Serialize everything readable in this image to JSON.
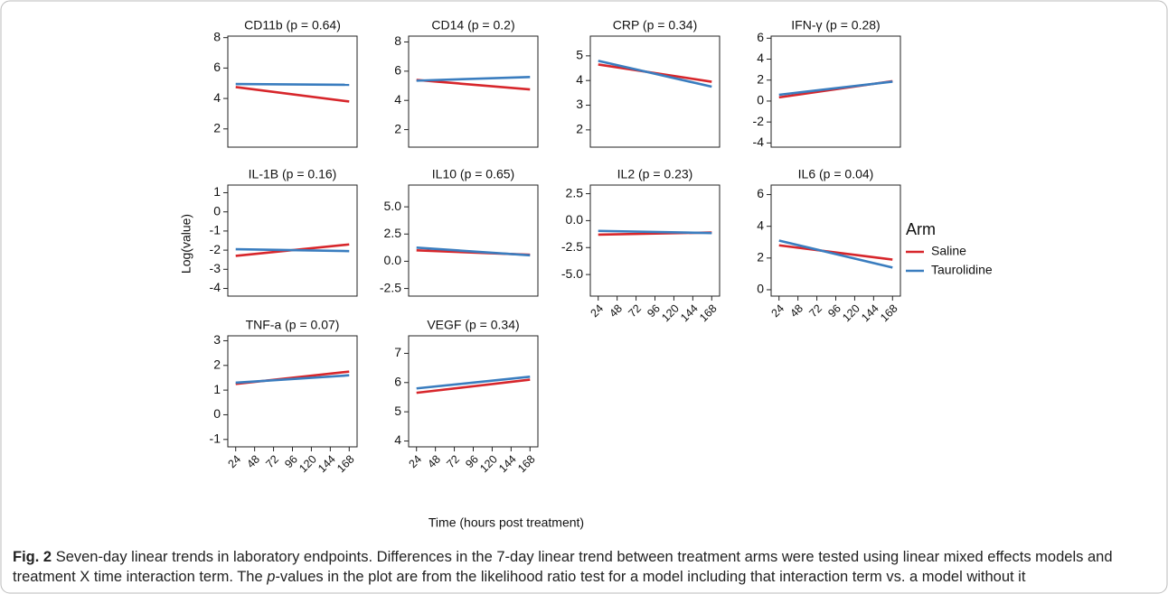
{
  "chart_data": [
    {
      "type": "line",
      "title": "CD11b (p = 0.64)",
      "x": [
        24,
        168
      ],
      "xlim": [
        14,
        178
      ],
      "xticks": [
        24,
        48,
        72,
        96,
        120,
        144,
        168
      ],
      "xaxis": false,
      "ylim": [
        0.8,
        8.1
      ],
      "yticks": [
        2,
        4,
        6,
        8
      ],
      "series": [
        {
          "name": "Saline",
          "color": "#d7262b",
          "values": [
            4.75,
            3.8
          ]
        },
        {
          "name": "Taurolidine",
          "color": "#3a7dbf",
          "values": [
            4.95,
            4.9
          ]
        }
      ]
    },
    {
      "type": "line",
      "title": "CD14 (p = 0.2)",
      "x": [
        24,
        168
      ],
      "xlim": [
        14,
        178
      ],
      "xticks": [
        24,
        48,
        72,
        96,
        120,
        144,
        168
      ],
      "xaxis": false,
      "ylim": [
        0.8,
        8.4
      ],
      "yticks": [
        2,
        4,
        6,
        8
      ],
      "series": [
        {
          "name": "Saline",
          "color": "#d7262b",
          "values": [
            5.4,
            4.75
          ]
        },
        {
          "name": "Taurolidine",
          "color": "#3a7dbf",
          "values": [
            5.35,
            5.6
          ]
        }
      ]
    },
    {
      "type": "line",
      "title": "CRP (p = 0.34)",
      "x": [
        24,
        168
      ],
      "xlim": [
        14,
        178
      ],
      "xticks": [
        24,
        48,
        72,
        96,
        120,
        144,
        168
      ],
      "xaxis": false,
      "ylim": [
        1.3,
        5.8
      ],
      "yticks": [
        2,
        3,
        4,
        5
      ],
      "series": [
        {
          "name": "Saline",
          "color": "#d7262b",
          "values": [
            4.65,
            3.95
          ]
        },
        {
          "name": "Taurolidine",
          "color": "#3a7dbf",
          "values": [
            4.8,
            3.75
          ]
        }
      ]
    },
    {
      "type": "line",
      "title": "IFN-γ (p = 0.28)",
      "x": [
        24,
        168
      ],
      "xlim": [
        14,
        178
      ],
      "xticks": [
        24,
        48,
        72,
        96,
        120,
        144,
        168
      ],
      "xaxis": false,
      "ylim": [
        -4.4,
        6.2
      ],
      "yticks": [
        -4,
        -2,
        0,
        2,
        4,
        6
      ],
      "series": [
        {
          "name": "Saline",
          "color": "#d7262b",
          "values": [
            0.35,
            1.9
          ]
        },
        {
          "name": "Taurolidine",
          "color": "#3a7dbf",
          "values": [
            0.6,
            1.85
          ]
        }
      ]
    },
    {
      "type": "line",
      "title": "IL-1B (p = 0.16)",
      "x": [
        24,
        168
      ],
      "xlim": [
        14,
        178
      ],
      "xticks": [
        24,
        48,
        72,
        96,
        120,
        144,
        168
      ],
      "xaxis": false,
      "ylim": [
        -4.4,
        1.4
      ],
      "yticks": [
        -4,
        -3,
        -2,
        -1,
        0,
        1
      ],
      "series": [
        {
          "name": "Saline",
          "color": "#d7262b",
          "values": [
            -2.3,
            -1.7
          ]
        },
        {
          "name": "Taurolidine",
          "color": "#3a7dbf",
          "values": [
            -1.95,
            -2.05
          ]
        }
      ]
    },
    {
      "type": "line",
      "title": "IL10 (p = 0.65)",
      "x": [
        24,
        168
      ],
      "xlim": [
        14,
        178
      ],
      "xticks": [
        24,
        48,
        72,
        96,
        120,
        144,
        168
      ],
      "xaxis": false,
      "ylim": [
        -3.2,
        7
      ],
      "yticks": [
        {
          "value": -2.5,
          "label": "-2.5"
        },
        {
          "value": 0,
          "label": "0.0"
        },
        {
          "value": 2.5,
          "label": "2.5"
        },
        {
          "value": 5,
          "label": "5.0"
        }
      ],
      "series": [
        {
          "name": "Saline",
          "color": "#d7262b",
          "values": [
            1.0,
            0.6
          ]
        },
        {
          "name": "Taurolidine",
          "color": "#3a7dbf",
          "values": [
            1.25,
            0.55
          ]
        }
      ]
    },
    {
      "type": "line",
      "title": "IL2 (p = 0.23)",
      "x": [
        24,
        168
      ],
      "xlim": [
        14,
        178
      ],
      "xticks": [
        24,
        48,
        72,
        96,
        120,
        144,
        168
      ],
      "xaxis": true,
      "ylim": [
        -7,
        3.3
      ],
      "yticks": [
        {
          "value": -5,
          "label": "-5.0"
        },
        {
          "value": -2.5,
          "label": "-2.5"
        },
        {
          "value": 0,
          "label": "0.0"
        },
        {
          "value": 2.5,
          "label": "2.5"
        }
      ],
      "series": [
        {
          "name": "Saline",
          "color": "#d7262b",
          "values": [
            -1.3,
            -1.1
          ]
        },
        {
          "name": "Taurolidine",
          "color": "#3a7dbf",
          "values": [
            -0.95,
            -1.15
          ]
        }
      ]
    },
    {
      "type": "line",
      "title": "IL6 (p = 0.04)",
      "x": [
        24,
        168
      ],
      "xlim": [
        14,
        178
      ],
      "xticks": [
        24,
        48,
        72,
        96,
        120,
        144,
        168
      ],
      "xaxis": true,
      "ylim": [
        -0.4,
        6.6
      ],
      "yticks": [
        0,
        2,
        4,
        6
      ],
      "series": [
        {
          "name": "Saline",
          "color": "#d7262b",
          "values": [
            2.8,
            1.9
          ]
        },
        {
          "name": "Taurolidine",
          "color": "#3a7dbf",
          "values": [
            3.1,
            1.4
          ]
        }
      ]
    },
    {
      "type": "line",
      "title": "TNF-a (p = 0.07)",
      "x": [
        24,
        168
      ],
      "xlim": [
        14,
        178
      ],
      "xticks": [
        24,
        48,
        72,
        96,
        120,
        144,
        168
      ],
      "xaxis": true,
      "ylim": [
        -1.3,
        3.2
      ],
      "yticks": [
        -1,
        0,
        1,
        2,
        3
      ],
      "series": [
        {
          "name": "Saline",
          "color": "#d7262b",
          "values": [
            1.25,
            1.75
          ]
        },
        {
          "name": "Taurolidine",
          "color": "#3a7dbf",
          "values": [
            1.3,
            1.6
          ]
        }
      ]
    },
    {
      "type": "line",
      "title": "VEGF (p = 0.34)",
      "x": [
        24,
        168
      ],
      "xlim": [
        14,
        178
      ],
      "xticks": [
        24,
        48,
        72,
        96,
        120,
        144,
        168
      ],
      "xaxis": true,
      "ylim": [
        3.8,
        7.6
      ],
      "yticks": [
        4,
        5,
        6,
        7
      ],
      "series": [
        {
          "name": "Saline",
          "color": "#d7262b",
          "values": [
            5.65,
            6.1
          ]
        },
        {
          "name": "Taurolidine",
          "color": "#3a7dbf",
          "values": [
            5.8,
            6.2
          ]
        }
      ]
    }
  ],
  "figure": {
    "ylabel": "Log(value)",
    "xlabel": "Time (hours post treatment)",
    "legend_title": "Arm"
  },
  "caption": {
    "label": "Fig. 2",
    "title": "Seven-day linear trends in laboratory endpoints.",
    "text_1": "Differences in the 7-day linear trend between treatment arms were tested using linear mixed effects models and treatment X time interaction term. The",
    "italic": "p",
    "text_2": "-values in the plot are from the likelihood ratio test for a model including that interaction term vs. a model without it"
  }
}
